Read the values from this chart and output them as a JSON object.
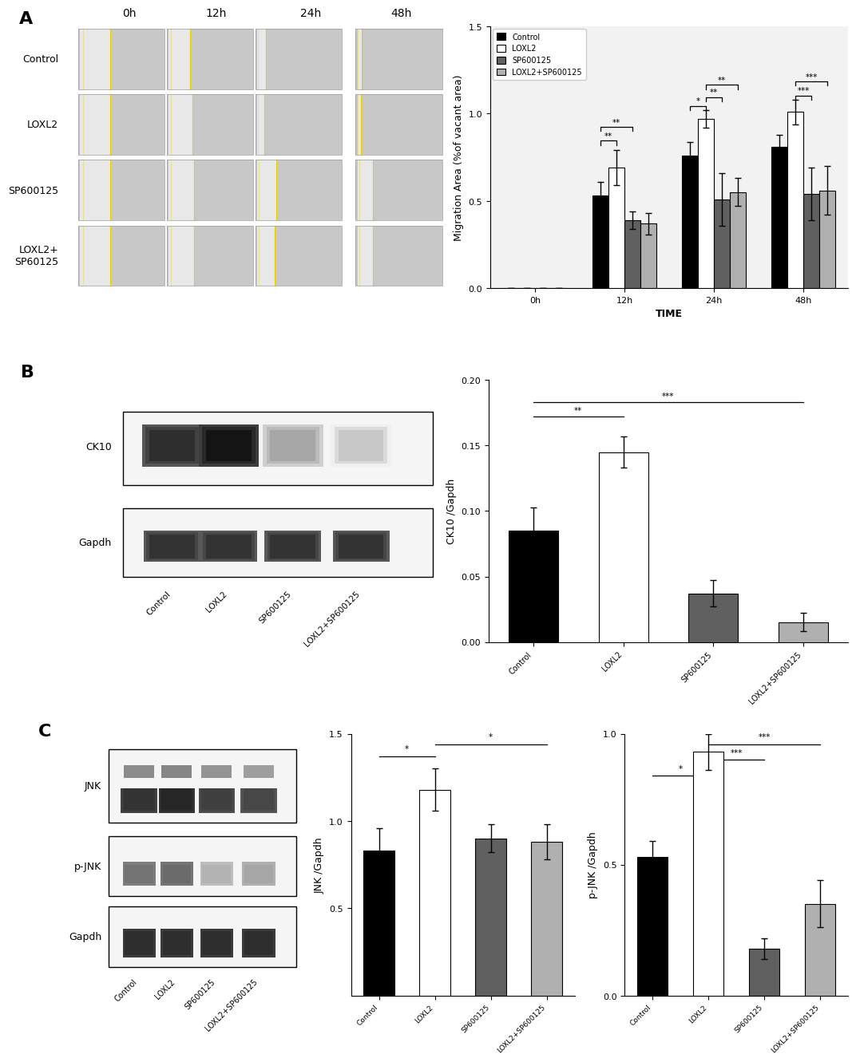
{
  "panel_A_bar": {
    "times": [
      "0h",
      "12h",
      "24h",
      "48h"
    ],
    "control": [
      0.0,
      0.53,
      0.76,
      0.81
    ],
    "loxl2": [
      0.0,
      0.69,
      0.97,
      1.01
    ],
    "sp": [
      0.0,
      0.39,
      0.51,
      0.54
    ],
    "loxl2sp": [
      0.0,
      0.37,
      0.55,
      0.56
    ],
    "control_err": [
      0.0,
      0.08,
      0.08,
      0.07
    ],
    "loxl2_err": [
      0.0,
      0.1,
      0.05,
      0.07
    ],
    "sp_err": [
      0.0,
      0.05,
      0.15,
      0.15
    ],
    "loxl2sp_err": [
      0.0,
      0.06,
      0.08,
      0.14
    ],
    "ylabel": "Migration Area (%of vacant area)",
    "xlabel": "TIME",
    "ylim": [
      0,
      1.5
    ],
    "yticks": [
      0.0,
      0.5,
      1.0,
      1.5
    ],
    "legend_labels": [
      "Control",
      "LOXL2",
      "SP600125",
      "LOXL2+SP600125"
    ],
    "colors": [
      "#000000",
      "#ffffff",
      "#606060",
      "#b0b0b0"
    ],
    "edgecolors": [
      "#000000",
      "#000000",
      "#000000",
      "#000000"
    ]
  },
  "panel_B_bar": {
    "categories": [
      "Control",
      "LOXL2",
      "SP600125",
      "LOXL2+SP600125"
    ],
    "values": [
      0.085,
      0.145,
      0.037,
      0.015
    ],
    "errors": [
      0.018,
      0.012,
      0.01,
      0.007
    ],
    "ylabel": "CK10 /Gapdh",
    "ylim": [
      0,
      0.2
    ],
    "yticks": [
      0.0,
      0.05,
      0.1,
      0.15,
      0.2
    ],
    "colors": [
      "#000000",
      "#ffffff",
      "#606060",
      "#b0b0b0"
    ],
    "edgecolors": [
      "#000000",
      "#000000",
      "#000000",
      "#000000"
    ]
  },
  "panel_C_jnk": {
    "categories": [
      "Control",
      "LOXL2",
      "SP600125",
      "LOXL2+SP600125"
    ],
    "values": [
      0.83,
      1.18,
      0.9,
      0.88
    ],
    "errors": [
      0.13,
      0.12,
      0.08,
      0.1
    ],
    "ylabel": "JNK /Gapdh",
    "ylim": [
      0,
      1.5
    ],
    "yticks": [
      0.5,
      1.0,
      1.5
    ],
    "colors": [
      "#000000",
      "#ffffff",
      "#606060",
      "#b0b0b0"
    ],
    "edgecolors": [
      "#000000",
      "#000000",
      "#000000",
      "#000000"
    ]
  },
  "panel_C_pjnk": {
    "categories": [
      "Control",
      "LOXL2",
      "SP600125",
      "LOXL2+SP600125"
    ],
    "values": [
      0.53,
      0.93,
      0.18,
      0.35
    ],
    "errors": [
      0.06,
      0.07,
      0.04,
      0.09
    ],
    "ylabel": "p-JNK /Gapdh",
    "ylim": [
      0,
      1.0
    ],
    "yticks": [
      0.0,
      0.5,
      1.0
    ],
    "colors": [
      "#000000",
      "#ffffff",
      "#606060",
      "#b0b0b0"
    ],
    "edgecolors": [
      "#000000",
      "#000000",
      "#000000",
      "#000000"
    ]
  },
  "bg_color": "#ffffff",
  "bar_width": 0.18,
  "capsize": 3,
  "label_fontsize": 9,
  "tick_fontsize": 8,
  "panel_label_fontsize": 16
}
